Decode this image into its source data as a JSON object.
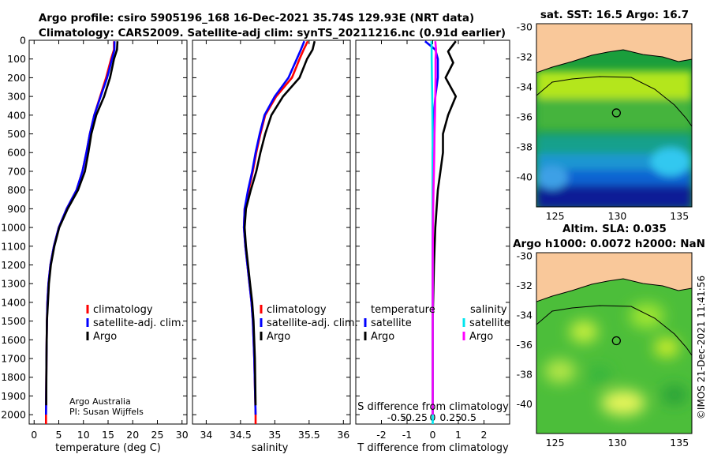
{
  "titles": {
    "line1": "Argo profile: csiro 5905196_168 16-Dec-2021 35.74S 129.93E (NRT data)",
    "line2": "Climatology: CARS2009. Satellite-adj clim: synTS_20211216.nc (0.91d earlier)"
  },
  "credit": {
    "line1": "Argo Australia",
    "line2": "PI: Susan Wijffels"
  },
  "timestamp": "©IMOS 21-Dec-2021 11:41:56",
  "colors": {
    "climatology": "#ff0000",
    "satellite": "#0000ff",
    "argo": "#000000",
    "sal_sat": "#00e5ee",
    "sal_argo": "#ff00ff",
    "land": "#f9c89a"
  },
  "chart_data": [
    {
      "type": "line",
      "name": "temperature",
      "xlabel": "temperature (deg C)",
      "xlim": [
        -1,
        31
      ],
      "xticks": [
        0,
        5,
        10,
        15,
        20,
        25,
        30
      ],
      "ylim": [
        2050,
        0
      ],
      "yticks": [
        0,
        100,
        200,
        300,
        400,
        500,
        600,
        700,
        800,
        900,
        1000,
        1100,
        1200,
        1300,
        1400,
        1500,
        1600,
        1700,
        1800,
        1900,
        2000
      ],
      "legend": [
        "climatology",
        "satellite-adj. clim.",
        "Argo"
      ],
      "series": [
        {
          "name": "climatology",
          "color": "#ff0000",
          "points": [
            [
              16.2,
              5
            ],
            [
              16.2,
              50
            ],
            [
              15.6,
              100
            ],
            [
              14.6,
              200
            ],
            [
              13.4,
              300
            ],
            [
              12.2,
              400
            ],
            [
              11.3,
              500
            ],
            [
              10.6,
              600
            ],
            [
              9.8,
              700
            ],
            [
              8.6,
              800
            ],
            [
              6.6,
              900
            ],
            [
              5.0,
              1000
            ],
            [
              4.0,
              1100
            ],
            [
              3.3,
              1200
            ],
            [
              2.9,
              1300
            ],
            [
              2.7,
              1400
            ],
            [
              2.6,
              1500
            ],
            [
              2.5,
              1700
            ],
            [
              2.4,
              2000
            ],
            [
              2.4,
              2050
            ]
          ]
        },
        {
          "name": "satellite-adj. clim.",
          "color": "#0000ff",
          "points": [
            [
              16.3,
              5
            ],
            [
              16.3,
              50
            ],
            [
              15.8,
              100
            ],
            [
              14.8,
              200
            ],
            [
              13.5,
              300
            ],
            [
              12.2,
              400
            ],
            [
              11.3,
              500
            ],
            [
              10.6,
              600
            ],
            [
              9.8,
              700
            ],
            [
              8.6,
              800
            ],
            [
              6.6,
              900
            ],
            [
              5.0,
              1000
            ],
            [
              4.0,
              1100
            ],
            [
              3.3,
              1200
            ],
            [
              2.9,
              1300
            ],
            [
              2.7,
              1400
            ],
            [
              2.6,
              1500
            ],
            [
              2.5,
              1700
            ],
            [
              2.4,
              2000
            ]
          ]
        },
        {
          "name": "Argo",
          "color": "#000000",
          "points": [
            [
              16.9,
              5
            ],
            [
              16.8,
              50
            ],
            [
              16.2,
              100
            ],
            [
              15.4,
              200
            ],
            [
              14.2,
              300
            ],
            [
              12.6,
              400
            ],
            [
              11.6,
              500
            ],
            [
              11.0,
              600
            ],
            [
              10.3,
              700
            ],
            [
              8.9,
              800
            ],
            [
              6.8,
              900
            ],
            [
              5.1,
              1000
            ],
            [
              4.1,
              1100
            ],
            [
              3.4,
              1200
            ],
            [
              3.0,
              1300
            ],
            [
              2.8,
              1400
            ],
            [
              2.6,
              1500
            ],
            [
              2.5,
              1700
            ],
            [
              2.45,
              1950
            ]
          ]
        }
      ]
    },
    {
      "type": "line",
      "name": "salinity",
      "xlabel": "salinity",
      "xlim": [
        33.8,
        36.1
      ],
      "xticks": [
        34,
        34.5,
        35,
        35.5,
        36
      ],
      "ylim": [
        2050,
        0
      ],
      "legend": [
        "climatology",
        "satellite-adj. clim.",
        "Argo"
      ],
      "series": [
        {
          "name": "climatology",
          "color": "#ff0000",
          "points": [
            [
              35.48,
              5
            ],
            [
              35.42,
              50
            ],
            [
              35.36,
              100
            ],
            [
              35.25,
              200
            ],
            [
              35.02,
              300
            ],
            [
              34.86,
              400
            ],
            [
              34.79,
              500
            ],
            [
              34.73,
              600
            ],
            [
              34.68,
              700
            ],
            [
              34.62,
              800
            ],
            [
              34.56,
              900
            ],
            [
              34.55,
              1000
            ],
            [
              34.57,
              1100
            ],
            [
              34.6,
              1200
            ],
            [
              34.63,
              1300
            ],
            [
              34.66,
              1400
            ],
            [
              34.68,
              1500
            ],
            [
              34.7,
              1700
            ],
            [
              34.72,
              2000
            ],
            [
              34.72,
              2050
            ]
          ]
        },
        {
          "name": "satellite-adj. clim.",
          "color": "#0000ff",
          "points": [
            [
              35.43,
              5
            ],
            [
              35.38,
              50
            ],
            [
              35.32,
              100
            ],
            [
              35.2,
              200
            ],
            [
              35.0,
              300
            ],
            [
              34.85,
              400
            ],
            [
              34.78,
              500
            ],
            [
              34.72,
              600
            ],
            [
              34.67,
              700
            ],
            [
              34.61,
              800
            ],
            [
              34.56,
              900
            ],
            [
              34.55,
              1000
            ],
            [
              34.57,
              1100
            ],
            [
              34.6,
              1200
            ],
            [
              34.63,
              1300
            ],
            [
              34.66,
              1400
            ],
            [
              34.68,
              1500
            ],
            [
              34.7,
              1700
            ],
            [
              34.72,
              2000
            ]
          ]
        },
        {
          "name": "Argo",
          "color": "#000000",
          "points": [
            [
              35.58,
              5
            ],
            [
              35.55,
              50
            ],
            [
              35.47,
              100
            ],
            [
              35.36,
              200
            ],
            [
              35.12,
              300
            ],
            [
              34.95,
              400
            ],
            [
              34.86,
              500
            ],
            [
              34.79,
              600
            ],
            [
              34.73,
              700
            ],
            [
              34.65,
              800
            ],
            [
              34.58,
              900
            ],
            [
              34.56,
              1000
            ],
            [
              34.58,
              1100
            ],
            [
              34.61,
              1200
            ],
            [
              34.64,
              1300
            ],
            [
              34.67,
              1400
            ],
            [
              34.69,
              1500
            ],
            [
              34.71,
              1700
            ],
            [
              34.72,
              1950
            ]
          ]
        }
      ]
    },
    {
      "type": "line",
      "name": "differences",
      "xlabel": "T difference from climatology",
      "xlabel2": "S difference from climatology",
      "xlim": [
        -3,
        3
      ],
      "xticks": [
        -2,
        -1,
        0,
        1,
        2
      ],
      "xticks2": [
        "-0.5",
        "-0.25",
        "0",
        "0.25",
        "0.5"
      ],
      "ylim": [
        2050,
        0
      ],
      "legend_groups": [
        {
          "title": "temperature",
          "items": [
            "satellite",
            "Argo"
          ]
        },
        {
          "title": "salinity",
          "items": [
            "satellite",
            "Argo"
          ]
        }
      ],
      "series": [
        {
          "name": "T satellite",
          "color": "#0000ff",
          "points": [
            [
              -0.3,
              5
            ],
            [
              0.1,
              50
            ],
            [
              0.2,
              100
            ],
            [
              0.2,
              200
            ],
            [
              0.1,
              300
            ],
            [
              0.05,
              400
            ],
            [
              0.0,
              600
            ],
            [
              0.0,
              1000
            ],
            [
              0.0,
              2000
            ]
          ]
        },
        {
          "name": "T Argo",
          "color": "#000000",
          "points": [
            [
              0.9,
              5
            ],
            [
              0.6,
              60
            ],
            [
              0.8,
              120
            ],
            [
              0.5,
              200
            ],
            [
              0.9,
              300
            ],
            [
              0.6,
              400
            ],
            [
              0.4,
              500
            ],
            [
              0.4,
              600
            ],
            [
              0.3,
              700
            ],
            [
              0.2,
              800
            ],
            [
              0.15,
              900
            ],
            [
              0.1,
              1000
            ],
            [
              0.05,
              1200
            ],
            [
              0.0,
              1500
            ],
            [
              0.0,
              2000
            ]
          ]
        },
        {
          "name": "S satellite",
          "color": "#00e5ee",
          "points": [
            [
              -0.05,
              5
            ],
            [
              -0.04,
              50
            ],
            [
              -0.04,
              100
            ],
            [
              -0.03,
              200
            ],
            [
              -0.02,
              300
            ],
            [
              -0.01,
              400
            ],
            [
              0.0,
              600
            ],
            [
              0.0,
              1000
            ],
            [
              0.0,
              2050
            ]
          ]
        },
        {
          "name": "S Argo",
          "color": "#ff00ff",
          "points": [
            [
              0.1,
              5
            ],
            [
              0.13,
              50
            ],
            [
              0.11,
              100
            ],
            [
              0.11,
              200
            ],
            [
              0.1,
              300
            ],
            [
              0.09,
              400
            ],
            [
              0.07,
              500
            ],
            [
              0.06,
              600
            ],
            [
              0.05,
              700
            ],
            [
              0.03,
              800
            ],
            [
              0.02,
              900
            ],
            [
              0.01,
              1000
            ],
            [
              0.0,
              1200
            ],
            [
              0.0,
              2000
            ]
          ]
        }
      ]
    },
    {
      "type": "heatmap",
      "name": "sst-map",
      "title": "sat. SST: 16.5 Argo: 16.7",
      "xlim": [
        123.5,
        136
      ],
      "xticks": [
        125,
        130,
        135
      ],
      "ylim": [
        -42,
        -29.8
      ],
      "yticks": [
        -30,
        -32,
        -34,
        -36,
        -38,
        -40
      ],
      "argo_position": [
        129.93,
        -35.74
      ]
    },
    {
      "type": "heatmap",
      "name": "sla-map",
      "title": "Altim. SLA: 0.035",
      "title2": "Argo h1000: 0.0072 h2000: NaN",
      "xlim": [
        123.5,
        136
      ],
      "xticks": [
        125,
        130,
        135
      ],
      "ylim": [
        -42,
        -29.8
      ],
      "yticks": [
        -30,
        -32,
        -34,
        -36,
        -38,
        -40
      ],
      "argo_position": [
        129.93,
        -35.74
      ]
    }
  ]
}
